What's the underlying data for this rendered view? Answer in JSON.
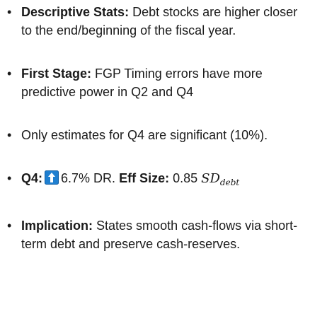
{
  "bullets": [
    {
      "label": "Descriptive Stats:",
      "text": "Debt stocks are higher closer to the end/beginning of the fiscal year."
    },
    {
      "label": "First Stage:",
      "text": "FGP Timing errors have more predictive power in Q2 and Q4"
    },
    {
      "text": "Only estimates for Q4 are significant (10%)."
    },
    {
      "label": "Q4:",
      "text": "6.7% DR.",
      "label2": "Eff Size:",
      "text2": "0.85",
      "math": "SD",
      "math_sub": "debt"
    },
    {
      "label": "Implication:",
      "text": "States smooth cash-flows via short-term debt and preserve cash-reserves."
    }
  ]
}
